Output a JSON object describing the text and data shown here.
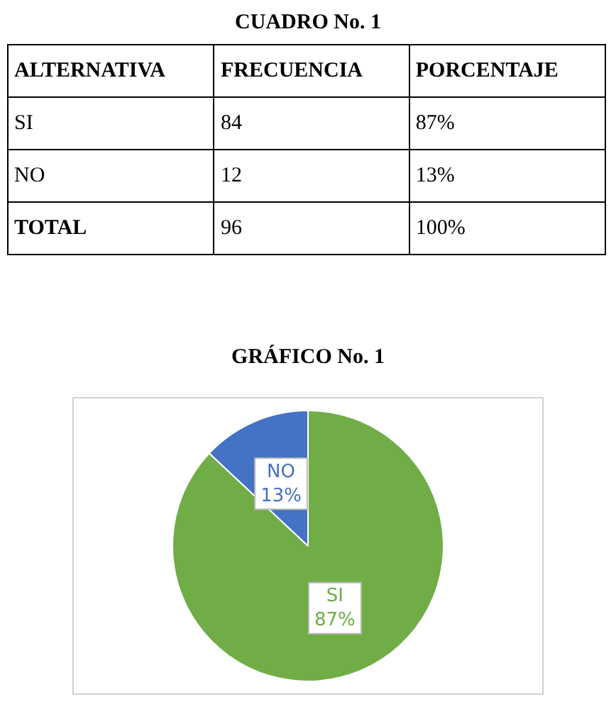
{
  "chart_data": [
    {
      "type": "other",
      "title": "CUADRO No. 1",
      "categories": [
        "ALTERNATIVA",
        "FRECUENCIA",
        "PORCENTAJE"
      ],
      "annotations": [
        "SI",
        "84",
        "87%",
        "NO",
        "12",
        "13%",
        "TOTAL",
        "96",
        "100%"
      ]
    },
    {
      "type": "pie",
      "title": "GRÁFICO No. 1",
      "categories": [
        "SI",
        "NO"
      ],
      "values": [
        87,
        13
      ],
      "colors": [
        "#70ad47",
        "#4472c4"
      ],
      "value_labels": [
        "87%",
        "13%"
      ],
      "legend": false
    }
  ]
}
